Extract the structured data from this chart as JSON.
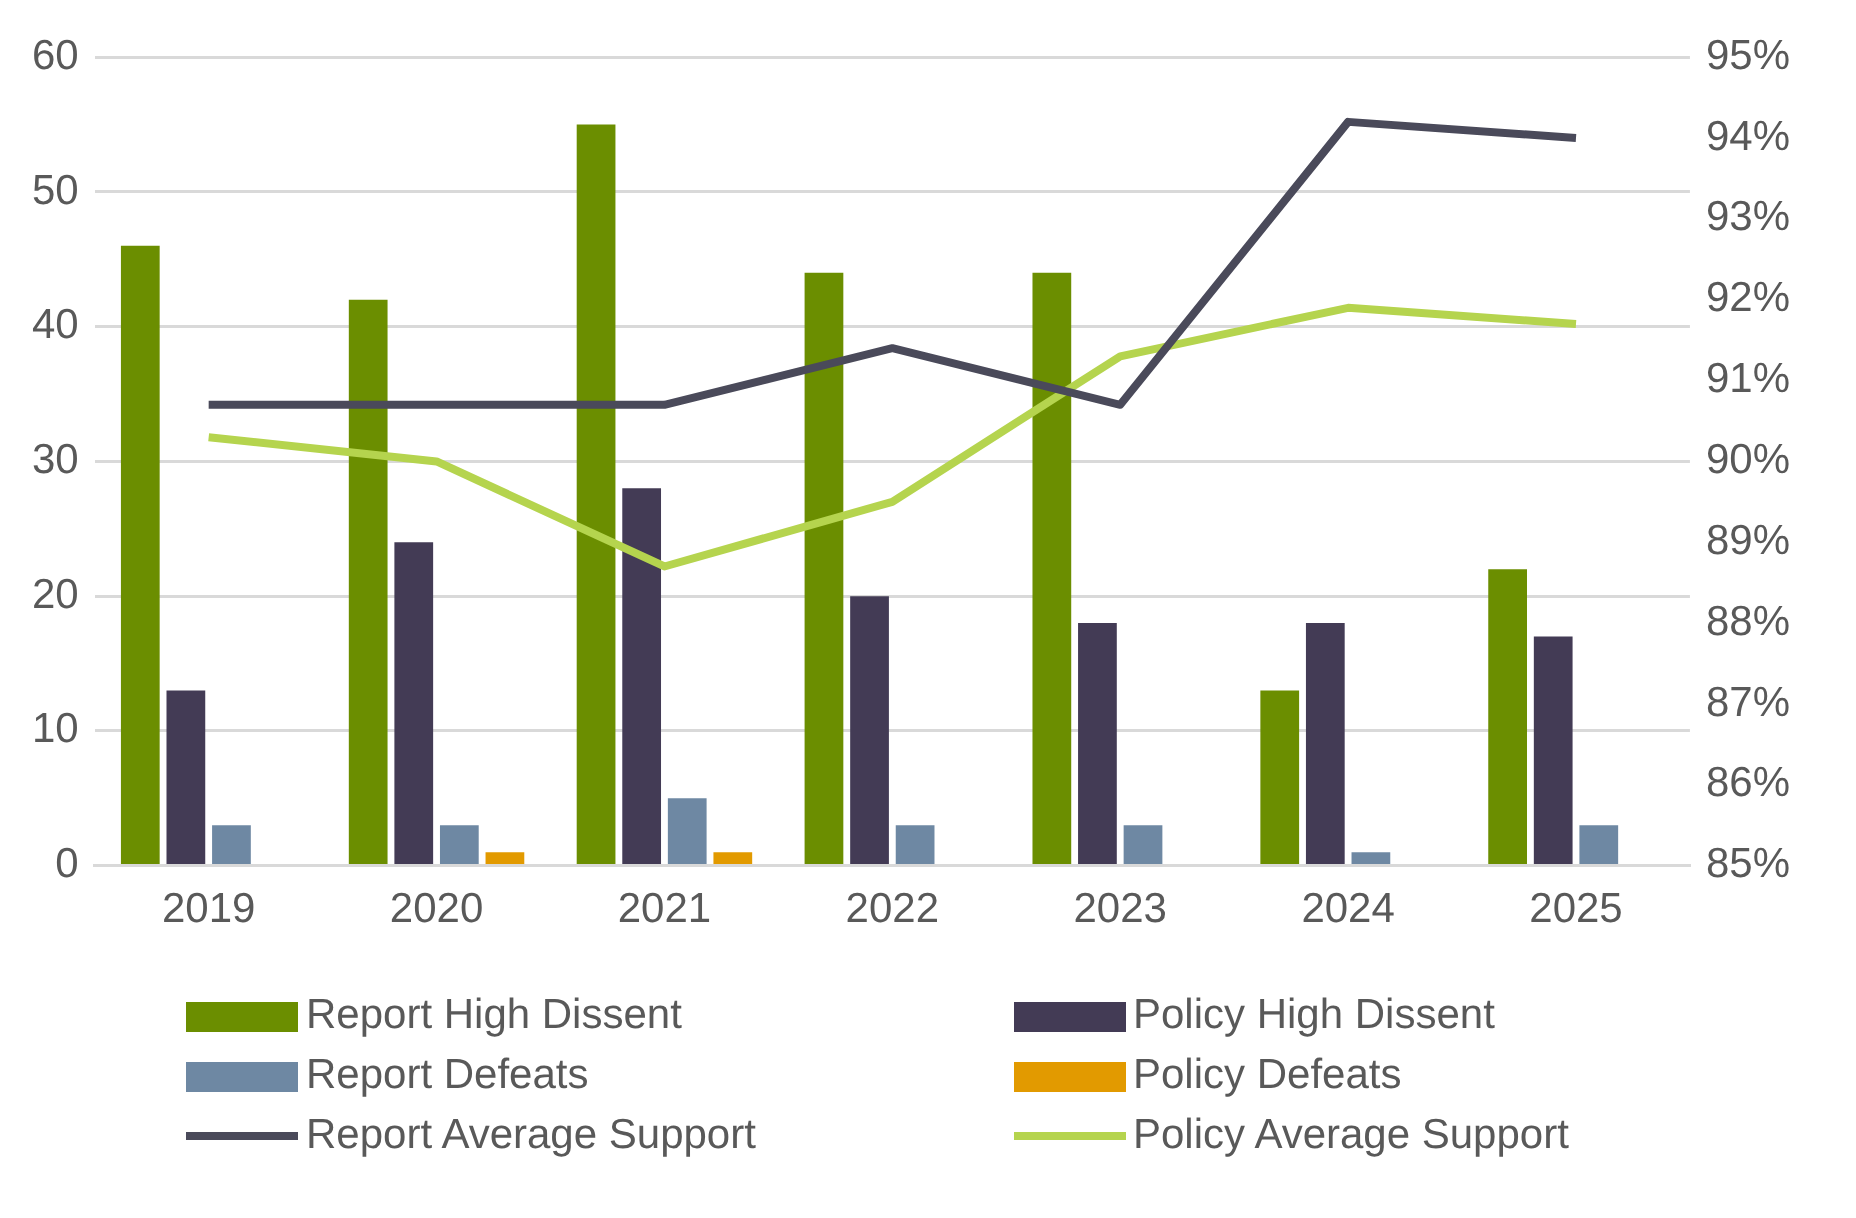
{
  "chart_data": {
    "type": "bar",
    "categories": [
      "2019",
      "2020",
      "2021",
      "2022",
      "2023",
      "2024",
      "2025"
    ],
    "series": [
      {
        "name": "Report High Dissent",
        "color": "#6b8e00",
        "values": [
          46,
          42,
          55,
          44,
          44,
          13,
          22
        ]
      },
      {
        "name": "Policy High Dissent",
        "color": "#433b55",
        "values": [
          13,
          24,
          28,
          20,
          18,
          18,
          17
        ]
      },
      {
        "name": "Report Defeats",
        "color": "#6e88a3",
        "values": [
          3,
          3,
          5,
          3,
          3,
          1,
          3
        ]
      },
      {
        "name": "Policy Defeats",
        "color": "#e29a00",
        "values": [
          0,
          1,
          1,
          0,
          0,
          0,
          0
        ]
      },
      {
        "name": "Report Average Support",
        "type": "line",
        "axis": "y2",
        "color": "#4a4a5a",
        "values": [
          90.7,
          90.7,
          90.7,
          91.4,
          90.7,
          94.2,
          94.0
        ]
      },
      {
        "name": "Policy Average Support",
        "type": "line",
        "axis": "y2",
        "color": "#b5d44e",
        "values": [
          90.3,
          90.0,
          88.7,
          89.5,
          91.3,
          91.9,
          91.7
        ]
      }
    ],
    "ylim": [
      0,
      60
    ],
    "yticks": [
      0,
      10,
      20,
      30,
      40,
      50,
      60
    ],
    "y2lim": [
      85,
      95
    ],
    "y2ticks": [
      {
        "value": 85,
        "label": "85%"
      },
      {
        "value": 86,
        "label": "86%"
      },
      {
        "value": 87,
        "label": "87%"
      },
      {
        "value": 88,
        "label": "88%"
      },
      {
        "value": 89,
        "label": "89%"
      },
      {
        "value": 90,
        "label": "90%"
      },
      {
        "value": 91,
        "label": "91%"
      },
      {
        "value": 92,
        "label": "92%"
      },
      {
        "value": 93,
        "label": "93%"
      },
      {
        "value": 94,
        "label": "94%"
      },
      {
        "value": 95,
        "label": "95%"
      }
    ],
    "grid": "y",
    "legend": "bottom",
    "marker": "none",
    "line_style": "solid"
  }
}
